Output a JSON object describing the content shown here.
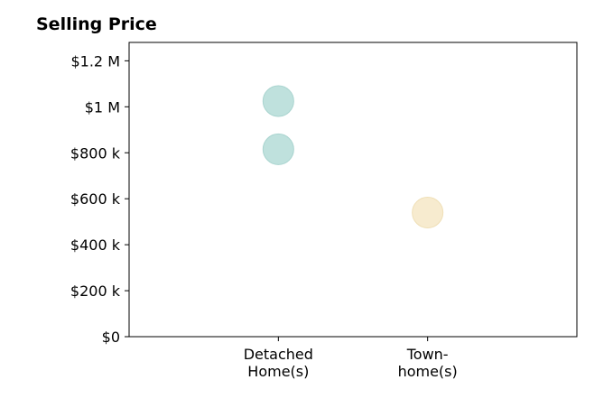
{
  "chart_data": {
    "type": "scatter",
    "title": "Selling Price",
    "xlabel": "",
    "ylabel": "",
    "categories": [
      {
        "line1": "Detached",
        "line2": "Home(s)"
      },
      {
        "line1": "Town-",
        "line2": "home(s)"
      }
    ],
    "ylim": [
      0,
      1280000
    ],
    "xlim": [
      -1,
      2
    ],
    "y_ticks": [
      {
        "value": 0,
        "label": "$0"
      },
      {
        "value": 200000,
        "label": "$200 k"
      },
      {
        "value": 400000,
        "label": "$400 k"
      },
      {
        "value": 600000,
        "label": "$600 k"
      },
      {
        "value": 800000,
        "label": "$800 k"
      },
      {
        "value": 1000000,
        "label": "$1 M"
      },
      {
        "value": 1200000,
        "label": "$1.2 M"
      }
    ],
    "points": [
      {
        "category_index": 0,
        "value": 1025000,
        "color": "#bfe1dd",
        "stroke": "#a9d4cf"
      },
      {
        "category_index": 0,
        "value": 815000,
        "color": "#bfe1dd",
        "stroke": "#a9d4cf"
      },
      {
        "category_index": 1,
        "value": 540000,
        "color": "#f7ebcf",
        "stroke": "#efdfb6"
      }
    ],
    "grid": false,
    "legend": "none"
  }
}
